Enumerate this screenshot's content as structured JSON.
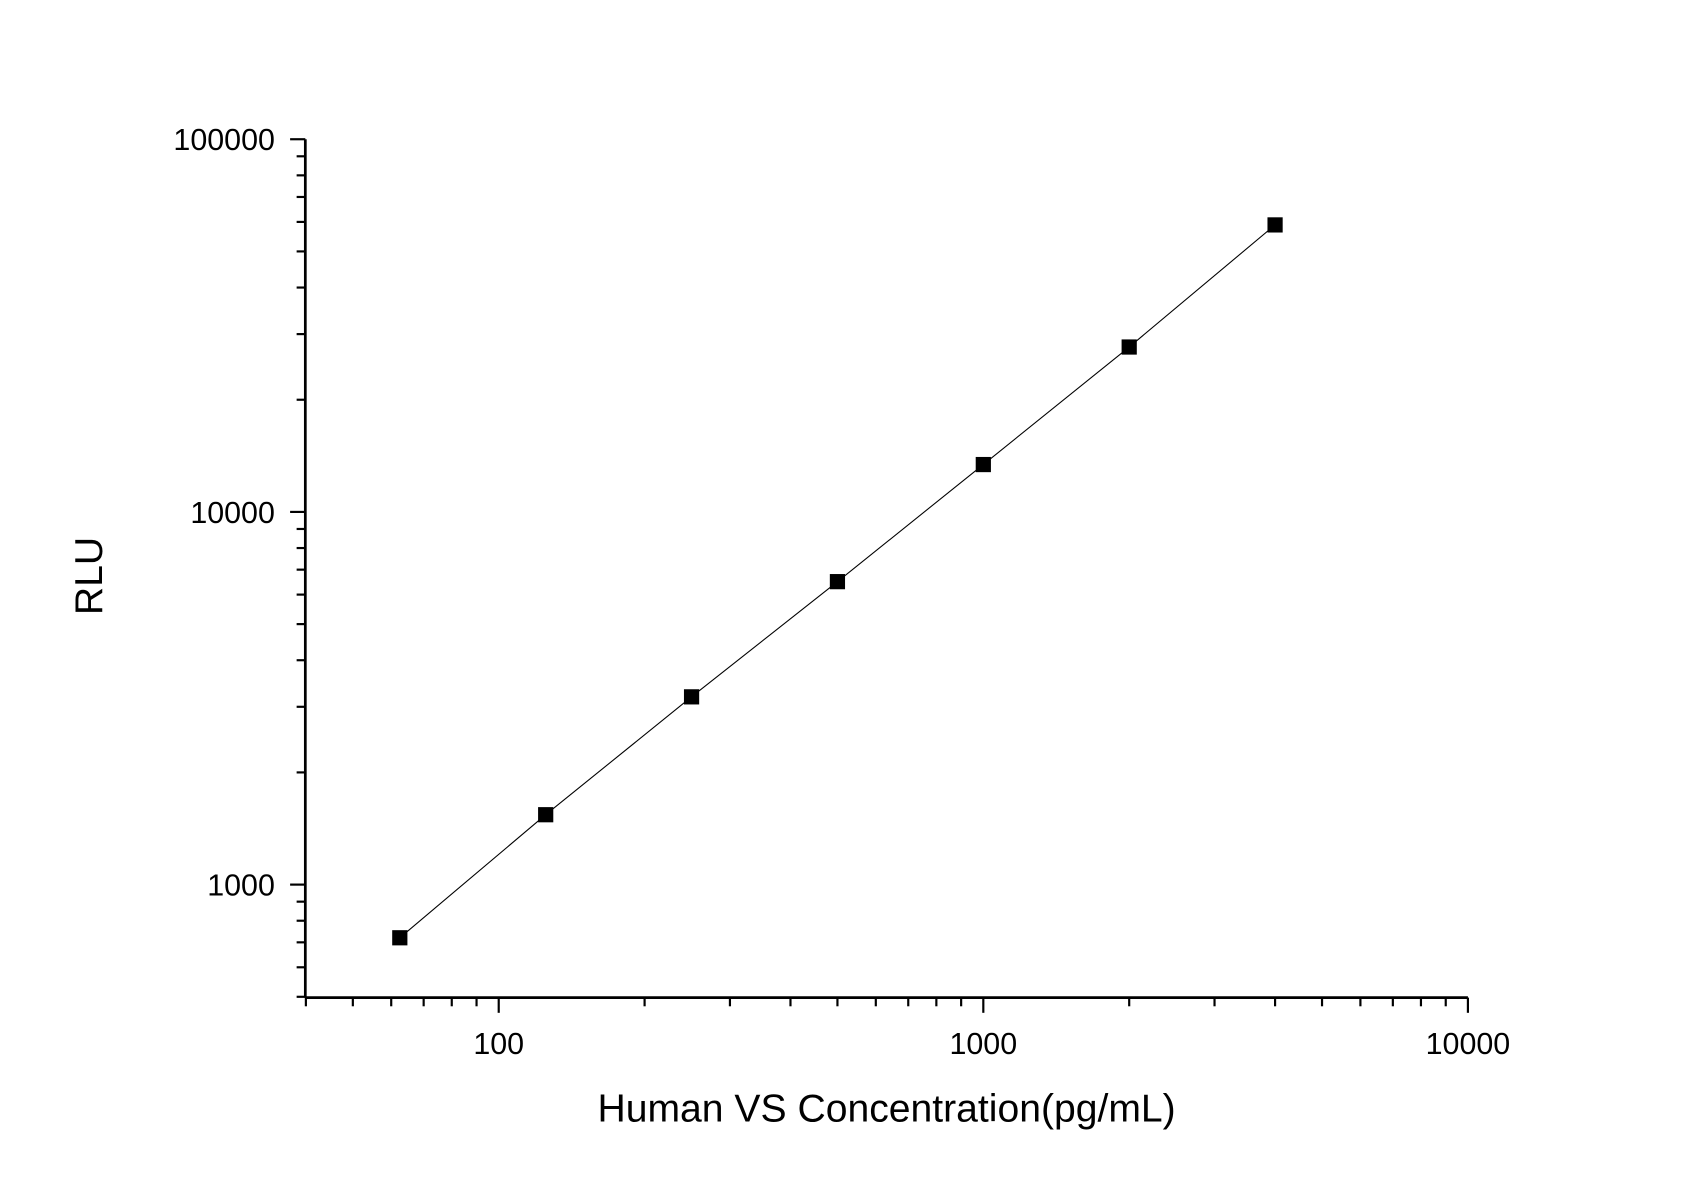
{
  "chart_data": {
    "type": "line",
    "title": "",
    "xlabel": "Human VS Concentration(pg/mL)",
    "ylabel": "RLU",
    "x_scale": "log",
    "y_scale": "log",
    "xlim": [
      40,
      10000
    ],
    "ylim": [
      500,
      100000
    ],
    "x_ticks": [
      "100",
      "1000",
      "10000"
    ],
    "y_ticks": [
      "1000",
      "10000",
      "100000"
    ],
    "grid": false,
    "legend": "none",
    "marker": "square",
    "color": "#000000",
    "series": [
      {
        "x": [
          62.5,
          125,
          250,
          500,
          1000,
          2000,
          4000
        ],
        "y": [
          720,
          1540,
          3190,
          6500,
          13400,
          27700,
          58900
        ]
      }
    ]
  }
}
